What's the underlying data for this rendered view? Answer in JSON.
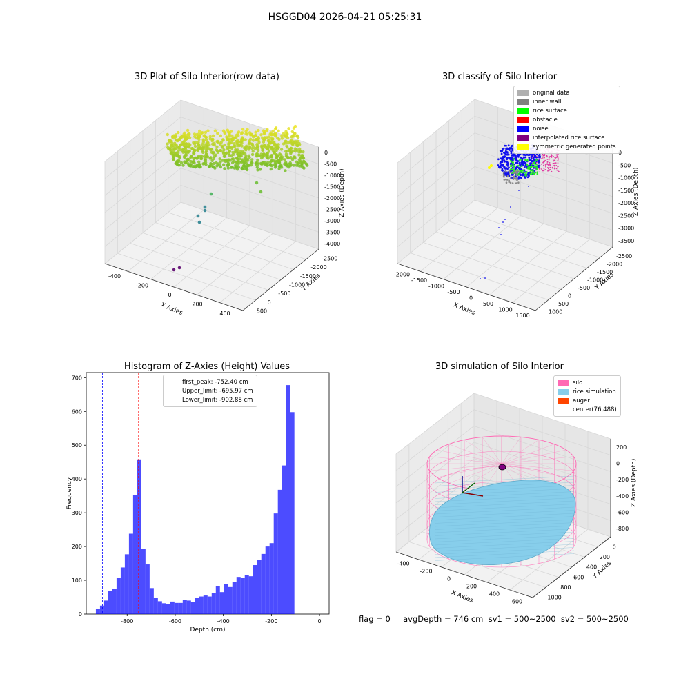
{
  "suptitle": "HSGGD04 2026-04-21 05:25:31",
  "panels": {
    "raw": {
      "title": "3D Plot of Silo Interior(row data)",
      "xlabel": "X Axies",
      "ylabel": "Y Axies",
      "zlabel": "Z Axies (Depth)",
      "xticks": [
        "-400",
        "-200",
        "0",
        "200",
        "400"
      ],
      "yticks": [
        "500",
        "0",
        "-500",
        "-1000",
        "-1500",
        "-2000",
        "-2500"
      ],
      "zticks": [
        "0",
        "-500",
        "-1000",
        "-1500",
        "-2000",
        "-2500",
        "-3000",
        "-3500",
        "-4000"
      ]
    },
    "classify": {
      "title": "3D classify of Silo Interior",
      "xlabel": "X Axies",
      "ylabel": "Y Axies",
      "zlabel": "Z Axies (Depth)",
      "xticks": [
        "-2000",
        "-1500",
        "-1000",
        "-500",
        "0",
        "500",
        "1000",
        "1500"
      ],
      "yticks": [
        "1000",
        "500",
        "0",
        "-500",
        "-1000",
        "-1500",
        "-2000",
        "-2500"
      ],
      "zticks": [
        "0",
        "-500",
        "-1000",
        "-1500",
        "-2000",
        "-2500",
        "-3000",
        "-3500"
      ],
      "legend": [
        {
          "label": "original data",
          "color": "#b0b0b0"
        },
        {
          "label": "inner wall",
          "color": "#808080"
        },
        {
          "label": "rice surface",
          "color": "#00ff00"
        },
        {
          "label": "obstacle",
          "color": "#ff0000"
        },
        {
          "label": "noise",
          "color": "#0000ff"
        },
        {
          "label": "interpolated rice surface",
          "color": "#800080"
        },
        {
          "label": "symmetric generated points",
          "color": "#ffff00"
        }
      ]
    },
    "histogram": {
      "title": "Histogram of Z-Axies (Height) Values",
      "legend": [
        {
          "label": "first_peak: -752.40 cm",
          "color": "#ff0000"
        },
        {
          "label": "Upper_limit: -695.97 cm",
          "color": "#0000ff"
        },
        {
          "label": "Lower_limit: -902.88 cm",
          "color": "#0000ff"
        }
      ]
    },
    "simulation": {
      "title": "3D simulation of Silo Interior",
      "xlabel": "X Axies",
      "ylabel": "Y Axies",
      "zlabel": "Z Axies (Depth)",
      "xticks": [
        "-400",
        "-200",
        "0",
        "200",
        "400",
        "600"
      ],
      "yticks": [
        "1000",
        "800",
        "600",
        "400",
        "200",
        "0"
      ],
      "zticks": [
        "200",
        "0",
        "-200",
        "-400",
        "-600",
        "-800"
      ],
      "legend": [
        {
          "label": "silo",
          "color": "#ff69b4"
        },
        {
          "label": "rice simulation",
          "color": "#87ceeb"
        },
        {
          "label": "auger",
          "color": "#ff4500"
        },
        {
          "label": "center(76,488)",
          "color": ""
        }
      ]
    }
  },
  "footer": {
    "text": "flag = 0     avgDepth = 746 cm  sv1 = 500~2500  sv2 = 500~2500"
  },
  "chart_data": [
    {
      "type": "bar",
      "title": "Histogram of Z-Axies (Height) Values",
      "xlabel": "Depth (cm)",
      "ylabel": "Frequency",
      "xlim": [
        -970,
        40
      ],
      "ylim": [
        0,
        715
      ],
      "xticks": [
        -800,
        -600,
        -400,
        -200,
        0
      ],
      "yticks": [
        0,
        100,
        200,
        300,
        400,
        500,
        600,
        700
      ],
      "bin_width": 17.2,
      "bin_start": -930,
      "color": "#0000ff",
      "values": [
        15,
        25,
        40,
        68,
        75,
        108,
        138,
        177,
        238,
        352,
        458,
        193,
        147,
        77,
        48,
        38,
        32,
        30,
        37,
        33,
        33,
        42,
        40,
        35,
        48,
        52,
        55,
        52,
        63,
        82,
        65,
        88,
        80,
        95,
        110,
        107,
        115,
        112,
        145,
        160,
        178,
        200,
        210,
        298,
        368,
        440,
        678,
        598
      ],
      "vlines": [
        {
          "name": "first_peak",
          "x": -752.4,
          "color": "#ff0000"
        },
        {
          "name": "Upper_limit",
          "x": -695.97,
          "color": "#0000ff"
        },
        {
          "name": "Lower_limit",
          "x": -902.88,
          "color": "#0000ff"
        }
      ],
      "grid": false,
      "legend_position": "top-center"
    }
  ]
}
